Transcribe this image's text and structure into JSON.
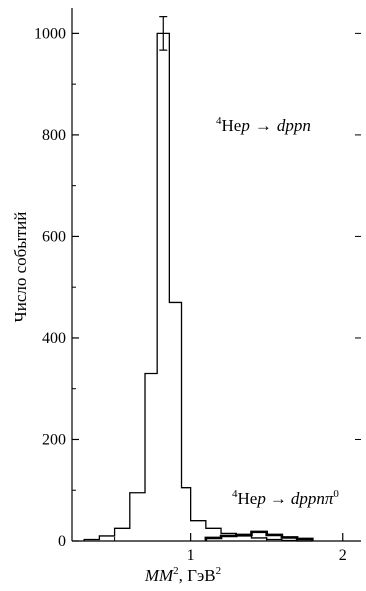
{
  "chart_data": {
    "type": "histogram",
    "xlabel_main": "MM",
    "xlabel_sup": "2",
    "xlabel_rest": ", ГэВ",
    "xlabel_sup2": "2",
    "ylabel": "Число событий",
    "xlim": [
      0.22,
      2.12
    ],
    "ylim": [
      0,
      1050
    ],
    "x_ticks": [
      1,
      2
    ],
    "x_minor_ticks": [
      0.5,
      1.5
    ],
    "y_ticks": [
      0,
      200,
      400,
      600,
      800,
      1000
    ],
    "y_minor_ticks": [
      100,
      300,
      500,
      700,
      900
    ],
    "grid": false,
    "series": [
      {
        "label_pre": "4",
        "label_nucleus": "He",
        "label_proj": "p",
        "arrow": "→",
        "label_final": "dppn",
        "edges": [
          0.3,
          0.4,
          0.5,
          0.6,
          0.7,
          0.78,
          0.86,
          0.94,
          1.0,
          1.1,
          1.2,
          1.3,
          1.4,
          1.5,
          1.6,
          1.7,
          1.8
        ],
        "counts": [
          3,
          10,
          25,
          95,
          330,
          1000,
          470,
          105,
          40,
          25,
          15,
          10,
          6,
          3,
          1,
          0
        ],
        "error_bar": {
          "x": 0.82,
          "y": 1000,
          "err": 33
        },
        "style": "outline"
      },
      {
        "label_pre": "4",
        "label_nucleus": "He",
        "label_proj": "p",
        "arrow": "→",
        "label_final": "dppnπ",
        "label_sup": "0",
        "edges": [
          1.1,
          1.2,
          1.3,
          1.4,
          1.5,
          1.6,
          1.7,
          1.8
        ],
        "counts": [
          6,
          10,
          12,
          18,
          12,
          7,
          4
        ],
        "style": "thick"
      }
    ]
  }
}
